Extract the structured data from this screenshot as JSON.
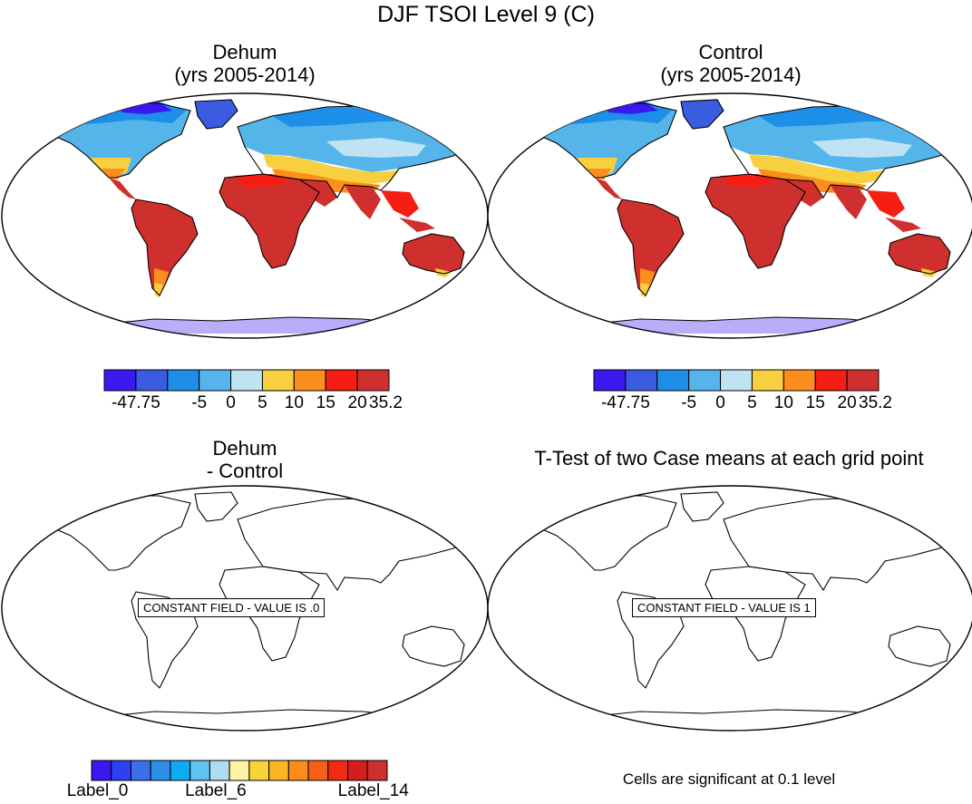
{
  "main_title": "DJF TSOI Level 9 (C)",
  "panels": {
    "top_left": {
      "title_line1": "Dehum",
      "title_line2": "(yrs 2005-2014)"
    },
    "top_right": {
      "title_line1": "Control",
      "title_line2": "(yrs 2005-2014)"
    },
    "bottom_left": {
      "title_line1": "Dehum",
      "title_line2": "- Control",
      "constant_message": "CONSTANT FIELD - VALUE IS .0"
    },
    "bottom_right": {
      "title": "T-Test of two Case means at each grid point",
      "constant_message": "CONSTANT FIELD - VALUE IS 1",
      "footnote": "Cells are significant at 0.1 level"
    }
  },
  "colorbar_top": {
    "colors": [
      "#3a18f0",
      "#3b5ce0",
      "#1e8fe8",
      "#55b5ea",
      "#bfe3f3",
      "#f8cf3e",
      "#fb8e1c",
      "#f61d12",
      "#d0302d"
    ],
    "labels": [
      "-47.75",
      "-5",
      "0",
      "5",
      "10",
      "15",
      "20",
      "35.2"
    ]
  },
  "colorbar_bottom": {
    "colors": [
      "#3a18f0",
      "#2f3ff5",
      "#3b6fe8",
      "#2c8fe6",
      "#10aaf0",
      "#5fc2f2",
      "#b0dcf3",
      "#fff4a3",
      "#f9d237",
      "#fbb524",
      "#fb8c1c",
      "#f85f16",
      "#f12b12",
      "#d41d1d",
      "#d0302d"
    ],
    "labels": [
      "Label_0",
      "Label_6",
      "Label_14"
    ]
  },
  "legend_colors": {
    "cold": "#3a18f0",
    "cool": "#55b5ea",
    "mild": "#f8cf3e",
    "warm": "#f61d12",
    "hot": "#d0302d"
  }
}
